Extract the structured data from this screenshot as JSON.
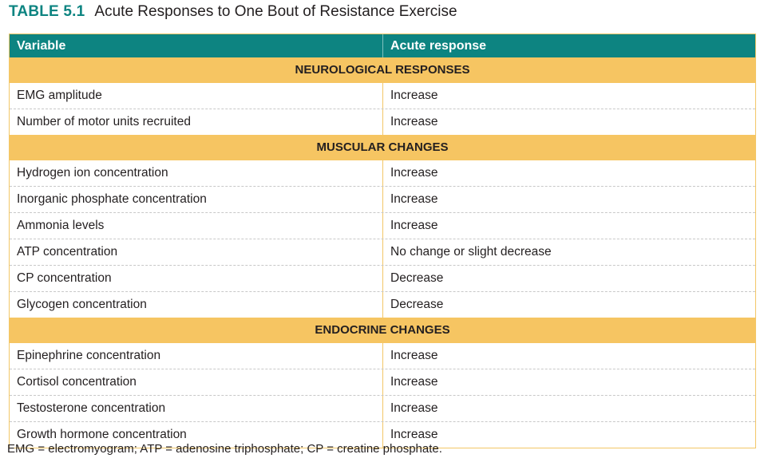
{
  "table": {
    "number": "TABLE 5.1",
    "title": "Acute Responses to One Bout of Resistance Exercise",
    "headers": [
      "Variable",
      "Acute response"
    ],
    "sections": [
      {
        "name": "NEUROLOGICAL RESPONSES",
        "rows": [
          [
            "EMG amplitude",
            "Increase"
          ],
          [
            "Number of motor units recruited",
            "Increase"
          ]
        ]
      },
      {
        "name": "MUSCULAR CHANGES",
        "rows": [
          [
            "Hydrogen ion concentration",
            "Increase"
          ],
          [
            "Inorganic phosphate concentration",
            "Increase"
          ],
          [
            "Ammonia levels",
            "Increase"
          ],
          [
            "ATP concentration",
            "No change or slight decrease"
          ],
          [
            "CP concentration",
            "Decrease"
          ],
          [
            "Glycogen concentration",
            "Decrease"
          ]
        ]
      },
      {
        "name": "ENDOCRINE CHANGES",
        "rows": [
          [
            "Epinephrine concentration",
            "Increase"
          ],
          [
            "Cortisol concentration",
            "Increase"
          ],
          [
            "Testosterone concentration",
            "Increase"
          ],
          [
            "Growth hormone concentration",
            "Increase"
          ]
        ]
      }
    ],
    "footnote": "EMG = electromyogram; ATP = adenosine triphosphate; CP = creatine phosphate."
  },
  "colors": {
    "header_teal": "#0d8481",
    "section_gold": "#f6c562",
    "border_gold": "#f3c767"
  }
}
